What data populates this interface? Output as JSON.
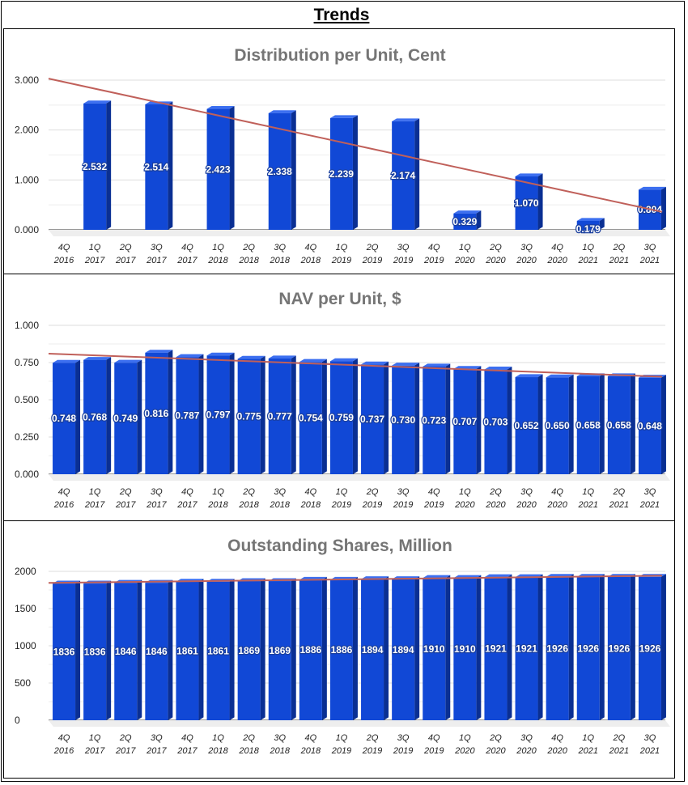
{
  "page": {
    "title": "Trends"
  },
  "chart_data": [
    {
      "type": "bar",
      "title": "Distribution per Unit, Cent",
      "categories": [
        "4Q 2016",
        "1Q 2017",
        "2Q 2017",
        "3Q 2017",
        "4Q 2017",
        "1Q 2018",
        "2Q 2018",
        "3Q 2018",
        "4Q 2018",
        "1Q 2019",
        "2Q 2019",
        "3Q 2019",
        "4Q 2019",
        "1Q 2020",
        "2Q 2020",
        "3Q 2020",
        "4Q 2020",
        "1Q 2021",
        "2Q 2021",
        "3Q 2021"
      ],
      "values": [
        null,
        2.532,
        null,
        2.514,
        null,
        2.423,
        null,
        2.338,
        null,
        2.239,
        null,
        2.174,
        null,
        0.329,
        null,
        1.07,
        null,
        0.179,
        null,
        0.804
      ],
      "data_labels": [
        "",
        "2.532",
        "",
        "2.514",
        "",
        "2.423",
        "",
        "2.338",
        "",
        "2.239",
        "",
        "2.174",
        "",
        "0.329",
        "",
        "1.070",
        "",
        "0.179",
        "",
        "0.804"
      ],
      "ylim": [
        0,
        3
      ],
      "yticks": [
        "0.000",
        "1.000",
        "2.000",
        "3.000"
      ],
      "trendline": {
        "start": 3.03,
        "end": 0.36
      },
      "xlabel": "",
      "ylabel": "",
      "grid": true
    },
    {
      "type": "bar",
      "title": "NAV per Unit, $",
      "categories": [
        "4Q 2016",
        "1Q 2017",
        "2Q 2017",
        "3Q 2017",
        "4Q 2017",
        "1Q 2018",
        "2Q 2018",
        "3Q 2018",
        "4Q 2018",
        "1Q 2019",
        "2Q 2019",
        "3Q 2019",
        "4Q 2019",
        "1Q 2020",
        "2Q 2020",
        "3Q 2020",
        "4Q 2020",
        "1Q 2021",
        "2Q 2021",
        "3Q 2021"
      ],
      "values": [
        0.748,
        0.768,
        0.749,
        0.816,
        0.787,
        0.797,
        0.775,
        0.777,
        0.754,
        0.759,
        0.737,
        0.73,
        0.723,
        0.707,
        0.703,
        0.652,
        0.65,
        0.658,
        0.658,
        0.648
      ],
      "data_labels": [
        "0.748",
        "0.768",
        "0.749",
        "0.816",
        "0.787",
        "0.797",
        "0.775",
        "0.777",
        "0.754",
        "0.759",
        "0.737",
        "0.730",
        "0.723",
        "0.707",
        "0.703",
        "0.652",
        "0.650",
        "0.658",
        "0.658",
        "0.648"
      ],
      "ylim": [
        0,
        1
      ],
      "yticks": [
        "0.000",
        "0.250",
        "0.500",
        "0.750",
        "1.000"
      ],
      "trendline": {
        "start": 0.81,
        "end": 0.655
      },
      "xlabel": "",
      "ylabel": "",
      "grid": true
    },
    {
      "type": "bar",
      "title": "Outstanding Shares, Million",
      "categories": [
        "4Q 2016",
        "1Q 2017",
        "2Q 2017",
        "3Q 2017",
        "4Q 2017",
        "1Q 2018",
        "2Q 2018",
        "3Q 2018",
        "4Q 2018",
        "1Q 2019",
        "2Q 2019",
        "3Q 2019",
        "4Q 2019",
        "1Q 2020",
        "2Q 2020",
        "3Q 2020",
        "4Q 2020",
        "1Q 2021",
        "2Q 2021",
        "3Q 2021"
      ],
      "values": [
        1836,
        1836,
        1846,
        1846,
        1861,
        1861,
        1869,
        1869,
        1886,
        1886,
        1894,
        1894,
        1910,
        1910,
        1921,
        1921,
        1926,
        1926,
        1926,
        1926
      ],
      "data_labels": [
        "1836",
        "1836",
        "1846",
        "1846",
        "1861",
        "1861",
        "1869",
        "1869",
        "1886",
        "1886",
        "1894",
        "1894",
        "1910",
        "1910",
        "1921",
        "1921",
        "1926",
        "1926",
        "1926",
        "1926"
      ],
      "ylim": [
        0,
        2000
      ],
      "yticks": [
        "0",
        "500",
        "1000",
        "1500",
        "2000"
      ],
      "trendline": {
        "start": 1845,
        "end": 1942
      },
      "xlabel": "",
      "ylabel": "",
      "grid": true
    }
  ],
  "colors": {
    "bar_front": "#1148d6",
    "bar_top": "#3c6ff0",
    "bar_side": "#0a2f93",
    "trendline": "#c0605a",
    "grid": "#dddddd",
    "title": "#757575",
    "label_outline": "#1a3f9e"
  }
}
